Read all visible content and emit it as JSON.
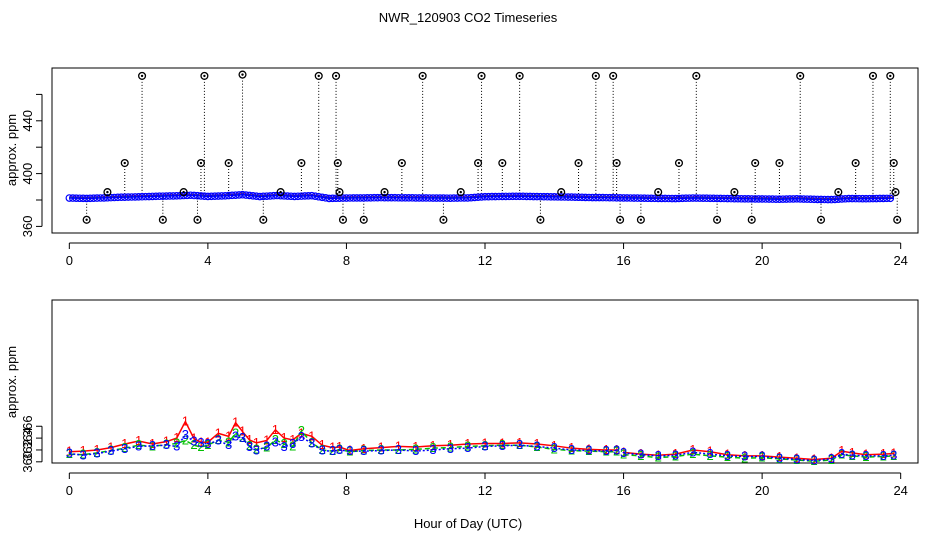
{
  "chart_data": [
    {
      "type": "scatter",
      "title": "NWR_120903  CO2 Timeseries",
      "xlabel": "",
      "ylabel": "approx. ppm",
      "xlim": [
        -0.5,
        24.5
      ],
      "ylim": [
        355,
        480
      ],
      "x_ticks": [
        0,
        4,
        8,
        12,
        16,
        20,
        24
      ],
      "x_tick_labels": [
        "0",
        "4",
        "8",
        "12",
        "16",
        "20",
        "24"
      ],
      "y_ticks": [
        360,
        400,
        440
      ],
      "y_tick_labels": [
        "360",
        "400",
        "440"
      ],
      "extra_y_ticks": [
        380,
        420,
        460
      ],
      "baseline": {
        "x": [
          0.0,
          0.5,
          1.0,
          1.5,
          2.0,
          2.5,
          3.0,
          3.5,
          4.0,
          4.5,
          5.0,
          5.5,
          6.0,
          6.5,
          7.0,
          7.5,
          8.0,
          8.5,
          9.0,
          9.5,
          10.0,
          10.5,
          11.0,
          11.5,
          12.0,
          12.5,
          13.0,
          13.5,
          14.0,
          14.5,
          15.0,
          15.5,
          16.0,
          16.5,
          17.0,
          17.5,
          18.0,
          18.5,
          19.0,
          19.5,
          20.0,
          20.5,
          21.0,
          21.5,
          22.0,
          22.5,
          23.0,
          23.5,
          23.8
        ],
        "y": [
          381.5,
          381.2,
          381.6,
          382.1,
          382.4,
          382.8,
          383.1,
          383.6,
          382.7,
          383.2,
          384.0,
          382.6,
          383.4,
          382.7,
          383.3,
          381.2,
          381.5,
          381.6,
          381.8,
          381.7,
          381.6,
          381.5,
          381.4,
          381.6,
          382.5,
          382.7,
          382.8,
          382.6,
          382.4,
          382.2,
          381.9,
          381.8,
          381.6,
          381.4,
          381.2,
          381.1,
          381.5,
          381.3,
          381.1,
          380.9,
          380.8,
          380.6,
          380.9,
          380.5,
          380.3,
          381.1,
          381.0,
          381.2,
          381.3
        ]
      },
      "outliers": {
        "x": [
          0.5,
          1.1,
          1.6,
          2.1,
          2.7,
          3.3,
          3.7,
          3.8,
          3.9,
          4.6,
          5.0,
          5.6,
          6.1,
          6.7,
          7.2,
          7.7,
          7.75,
          7.8,
          7.9,
          8.5,
          9.1,
          9.6,
          10.2,
          10.8,
          11.3,
          11.8,
          11.9,
          12.5,
          13.0,
          13.6,
          14.2,
          14.7,
          15.2,
          15.7,
          15.8,
          15.9,
          16.5,
          17.0,
          17.6,
          18.1,
          18.7,
          19.2,
          19.7,
          19.8,
          20.5,
          21.1,
          21.7,
          22.2,
          22.7,
          23.2,
          23.7,
          23.8,
          23.85,
          23.9
        ],
        "y": [
          365,
          386,
          408,
          474,
          365,
          386,
          365,
          408,
          474,
          408,
          475,
          365,
          386,
          408,
          474,
          474,
          408,
          386,
          365,
          365,
          386,
          408,
          474,
          365,
          386,
          408,
          474,
          408,
          474,
          365,
          386,
          408,
          474,
          474,
          408,
          365,
          365,
          386,
          408,
          474,
          365,
          386,
          365,
          408,
          408,
          474,
          365,
          386,
          408,
          474,
          474,
          408,
          386,
          365
        ]
      }
    },
    {
      "type": "line",
      "title": "",
      "xlabel": "Hour of Day (UTC)",
      "ylabel": "approx. ppm",
      "xlim": [
        -0.5,
        24.5
      ],
      "ylim": [
        359.8,
        387.3
      ],
      "x_ticks": [
        0,
        4,
        8,
        12,
        16,
        20,
        24
      ],
      "x_tick_labels": [
        "0",
        "4",
        "8",
        "12",
        "16",
        "20",
        "24"
      ],
      "y_ticks": [
        360,
        362,
        364,
        366
      ],
      "y_tick_labels": [
        "360",
        "362",
        "364",
        "366"
      ],
      "series": [
        {
          "name": "1",
          "color": "#ff0000",
          "x": [
            0.0,
            0.4,
            0.8,
            1.2,
            1.6,
            2.0,
            2.4,
            2.8,
            3.1,
            3.35,
            3.6,
            3.8,
            4.0,
            4.3,
            4.6,
            4.8,
            5.0,
            5.2,
            5.4,
            5.7,
            5.95,
            6.2,
            6.45,
            6.7,
            7.0,
            7.3,
            7.6,
            7.8,
            8.1,
            8.5,
            9.0,
            9.5,
            10.0,
            10.5,
            11.0,
            11.5,
            12.0,
            12.5,
            13.0,
            13.5,
            14.0,
            14.5,
            15.0,
            15.5,
            15.8
          ],
          "y": [
            361.7,
            361.8,
            362.0,
            362.4,
            363.0,
            363.5,
            363.0,
            363.4,
            364.0,
            366.8,
            363.9,
            363.3,
            363.3,
            364.8,
            364.3,
            366.6,
            365.1,
            363.7,
            363.2,
            363.6,
            365.4,
            364.0,
            363.7,
            364.8,
            364.3,
            362.8,
            362.4,
            362.5,
            361.9,
            362.2,
            362.4,
            362.6,
            362.5,
            362.7,
            362.8,
            363.0,
            363.1,
            363.1,
            363.2,
            363.0,
            362.7,
            362.3,
            362.1,
            362.0,
            362.0
          ]
        },
        {
          "name": "1b",
          "color": "#ff0000",
          "x": [
            16.0,
            16.5,
            17.0,
            17.5,
            18.0,
            18.5,
            19.0,
            19.5,
            20.0,
            20.5,
            21.0,
            21.5,
            22.0,
            22.3,
            22.6,
            23.0,
            23.5,
            23.8
          ],
          "y": [
            361.6,
            361.3,
            361.1,
            361.3,
            362.0,
            361.7,
            361.2,
            361.0,
            361.0,
            360.8,
            360.6,
            360.4,
            360.6,
            361.8,
            361.5,
            361.2,
            361.3,
            361.4
          ]
        },
        {
          "name": "2",
          "color": "#00c000",
          "x": [
            0.0,
            0.4,
            0.8,
            1.2,
            1.6,
            2.0,
            2.4,
            2.8,
            3.1,
            3.35,
            3.6,
            3.8,
            4.0,
            4.3,
            4.6,
            4.8,
            5.0,
            5.2,
            5.4,
            5.7,
            5.95,
            6.2,
            6.45,
            6.7,
            7.0,
            7.3,
            7.6,
            7.8,
            8.1,
            8.5,
            9.0,
            9.5,
            10.0,
            10.5,
            11.0,
            11.5,
            12.0,
            12.5,
            13.0,
            13.5,
            14.0,
            14.5,
            15.0,
            15.5,
            15.8
          ],
          "y": [
            361.3,
            361.2,
            361.5,
            361.9,
            362.3,
            362.8,
            362.6,
            362.9,
            363.1,
            363.6,
            362.8,
            362.5,
            362.8,
            363.7,
            363.3,
            364.8,
            364.0,
            362.7,
            362.1,
            362.4,
            363.7,
            363.0,
            362.6,
            365.2,
            363.2,
            362.0,
            361.8,
            362.1,
            361.7,
            361.9,
            362.0,
            362.0,
            362.1,
            362.3,
            362.4,
            362.6,
            362.7,
            362.8,
            362.8,
            362.5,
            362.1,
            361.9,
            361.8,
            361.7,
            361.7
          ]
        },
        {
          "name": "2b",
          "color": "#00c000",
          "x": [
            16.0,
            16.5,
            17.0,
            17.5,
            18.0,
            18.5,
            19.0,
            19.5,
            20.0,
            20.5,
            21.0,
            21.5,
            22.0,
            22.3,
            22.6,
            23.0,
            23.5,
            23.8
          ],
          "y": [
            361.2,
            361.0,
            360.7,
            360.9,
            361.3,
            361.0,
            360.8,
            360.6,
            360.7,
            360.5,
            360.3,
            360.1,
            360.3,
            361.2,
            361.0,
            360.8,
            360.9,
            361.0
          ]
        },
        {
          "name": "3",
          "color": "#0000ff",
          "x": [
            0.0,
            0.4,
            0.8,
            1.2,
            1.6,
            2.0,
            2.4,
            2.8,
            3.1,
            3.35,
            3.6,
            3.8,
            4.0,
            4.3,
            4.6,
            4.8,
            5.0,
            5.2,
            5.4,
            5.7,
            5.95,
            6.2,
            6.45,
            6.7,
            7.0,
            7.3,
            7.6,
            7.8,
            8.1,
            8.5,
            9.0,
            9.5,
            10.0,
            10.5,
            11.0,
            11.5,
            12.0,
            12.5,
            13.0,
            13.5,
            14.0,
            14.5,
            15.0,
            15.5,
            15.8
          ],
          "y": [
            361.4,
            361.1,
            361.4,
            361.8,
            362.2,
            362.6,
            362.7,
            362.8,
            362.6,
            364.5,
            363.4,
            363.2,
            363.0,
            363.6,
            362.8,
            364.3,
            364.0,
            362.5,
            361.9,
            362.6,
            363.3,
            362.5,
            363.0,
            364.2,
            363.1,
            361.9,
            361.8,
            362.0,
            361.8,
            361.8,
            361.9,
            362.0,
            361.8,
            362.0,
            362.2,
            362.3,
            362.6,
            362.7,
            362.8,
            362.6,
            362.3,
            362.0,
            361.9,
            361.8,
            361.9
          ]
        },
        {
          "name": "3b",
          "color": "#0000ff",
          "x": [
            16.0,
            16.5,
            17.0,
            17.5,
            18.0,
            18.5,
            19.0,
            19.5,
            20.0,
            20.5,
            21.0,
            21.5,
            22.0,
            22.3,
            22.6,
            23.0,
            23.5,
            23.8
          ],
          "y": [
            361.5,
            361.2,
            361.0,
            361.1,
            361.6,
            361.3,
            361.0,
            360.9,
            360.9,
            360.6,
            360.4,
            360.2,
            360.5,
            361.3,
            361.1,
            361.0,
            361.0,
            361.1
          ]
        }
      ]
    }
  ]
}
